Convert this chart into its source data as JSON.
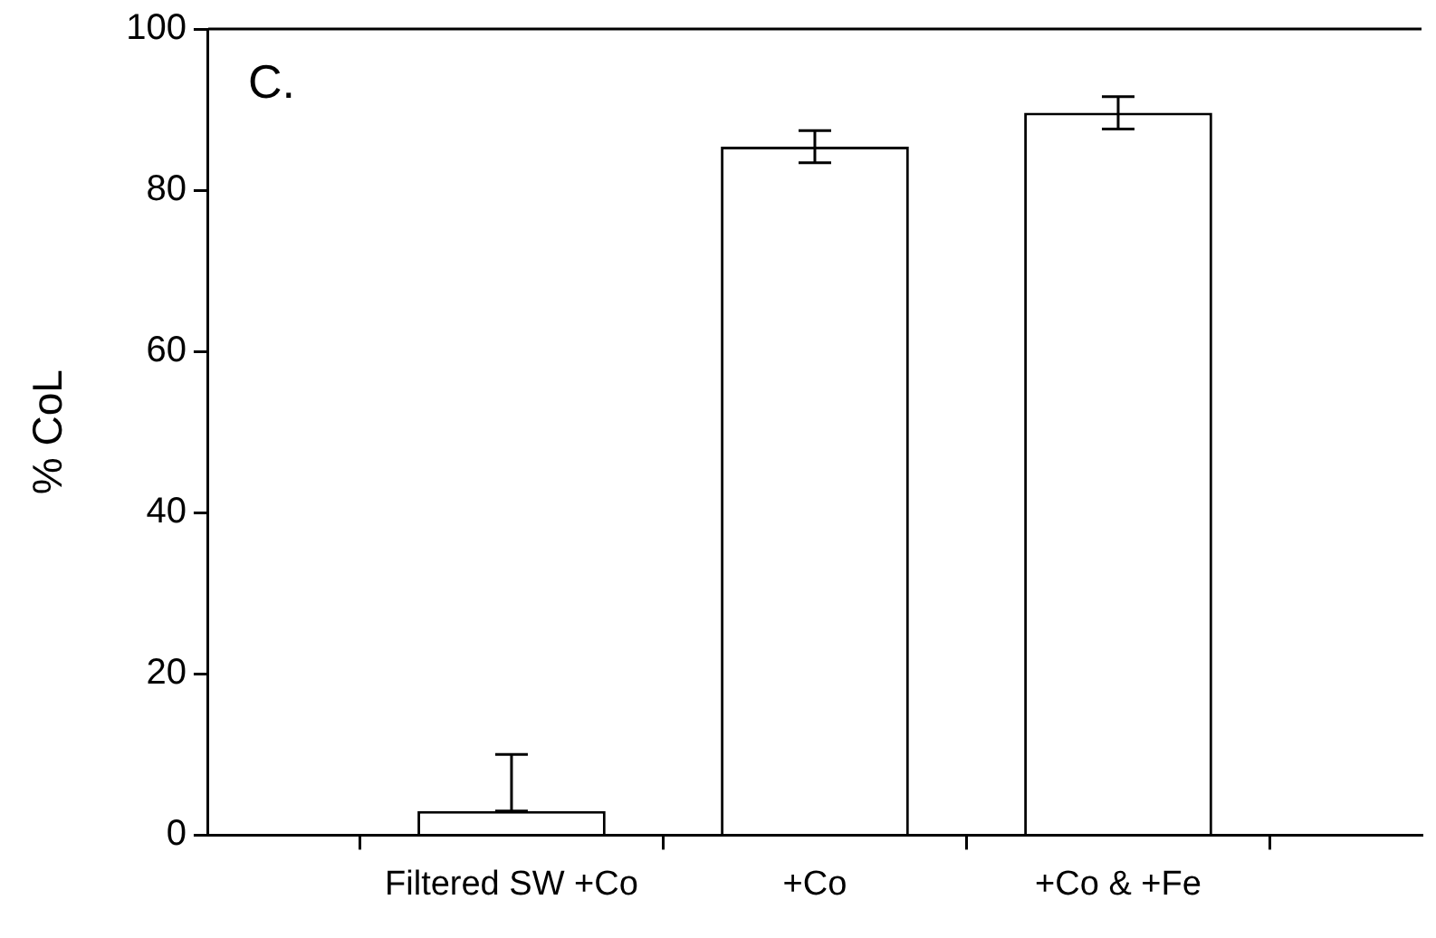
{
  "chart_data": {
    "type": "bar",
    "ylabel": "% CoL",
    "annotations": [
      "C."
    ],
    "categories": [
      null,
      "Filtered SW +Co",
      "+Co",
      "+Co & +Fe",
      null
    ],
    "values": [
      null,
      3,
      85.4,
      89.6,
      null
    ],
    "errors": [
      null,
      [
        3,
        10
      ],
      2,
      2,
      null
    ],
    "color": "#ffffff",
    "ylim": [
      0,
      100
    ],
    "yticks": [
      0,
      20,
      40,
      60,
      80,
      100
    ],
    "grid": false,
    "legend": false
  }
}
